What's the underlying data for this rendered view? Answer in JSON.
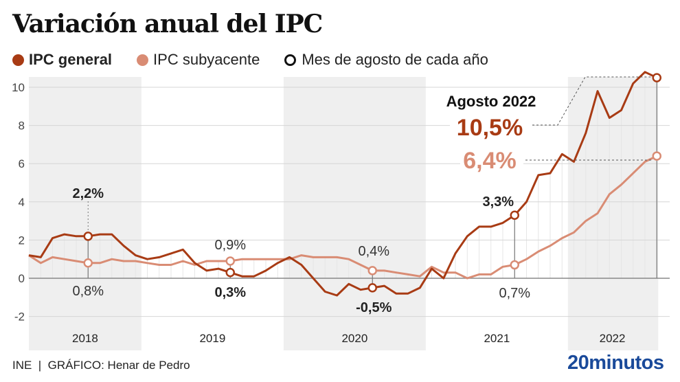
{
  "title": "Variación anual del IPC",
  "legend": [
    {
      "label": "IPC general",
      "color": "#a83b14",
      "marker": "dot",
      "bold": true
    },
    {
      "label": "IPC subyacente",
      "color": "#d98c74",
      "marker": "dot",
      "bold": false
    },
    {
      "label": "Mes de agosto de cada año",
      "color": "#111111",
      "marker": "ring",
      "bold": false
    }
  ],
  "footer": {
    "source": "INE  |  GRÁFICO: Henar de Pedro"
  },
  "logo": "20minutos",
  "colors": {
    "general": "#a83b14",
    "subyacente": "#d98c74",
    "shade": "#efefef",
    "grid": "#d6d6d6",
    "axis": "#777777"
  },
  "chart_data": {
    "type": "line",
    "title": "Variación anual del IPC",
    "xlabel": "",
    "ylabel": "",
    "ylim": [
      -3,
      10.5
    ],
    "yticks": [
      10,
      8,
      6,
      4,
      2,
      0,
      -2
    ],
    "ytick_labels": [
      "10",
      "8",
      "6",
      "4",
      "2",
      "0",
      "-2"
    ],
    "x_start": "2018-03",
    "x_end": "2022-08",
    "years": [
      "2018",
      "2019",
      "2020",
      "2021",
      "2022"
    ],
    "grid": true,
    "legend_position": "top-left",
    "series": [
      {
        "name": "IPC general",
        "values": [
          1.2,
          1.1,
          2.1,
          2.3,
          2.2,
          2.2,
          2.3,
          2.3,
          1.7,
          1.2,
          1.0,
          1.1,
          1.3,
          1.5,
          0.8,
          0.4,
          0.5,
          0.3,
          0.1,
          0.1,
          0.4,
          0.8,
          1.1,
          0.7,
          0.0,
          -0.7,
          -0.9,
          -0.3,
          -0.6,
          -0.5,
          -0.4,
          -0.8,
          -0.8,
          -0.5,
          0.5,
          0.0,
          1.3,
          2.2,
          2.7,
          2.7,
          2.9,
          3.3,
          4.0,
          5.4,
          5.5,
          6.5,
          6.1,
          7.6,
          9.8,
          8.4,
          8.8,
          10.2,
          10.8,
          10.5
        ]
      },
      {
        "name": "IPC subyacente",
        "values": [
          1.2,
          0.8,
          1.1,
          1.0,
          0.9,
          0.8,
          0.8,
          1.0,
          0.9,
          0.9,
          0.8,
          0.7,
          0.7,
          0.9,
          0.7,
          0.9,
          0.9,
          0.9,
          1.0,
          1.0,
          1.0,
          1.0,
          1.0,
          1.2,
          1.1,
          1.1,
          1.1,
          1.0,
          0.7,
          0.4,
          0.4,
          0.3,
          0.2,
          0.1,
          0.6,
          0.3,
          0.3,
          0.0,
          0.2,
          0.2,
          0.6,
          0.7,
          1.0,
          1.4,
          1.7,
          2.1,
          2.4,
          3.0,
          3.4,
          4.4,
          4.9,
          5.5,
          6.1,
          6.4
        ]
      }
    ],
    "august_markers": [
      {
        "year": "2018",
        "general": 2.2,
        "subyacente": 0.8,
        "general_label": "2,2%",
        "subyacente_label": "0,8%"
      },
      {
        "year": "2019",
        "general": 0.3,
        "subyacente": 0.9,
        "general_label": "0,3%",
        "subyacente_label": "0,9%"
      },
      {
        "year": "2020",
        "general": -0.5,
        "subyacente": 0.4,
        "general_label": "-0,5%",
        "subyacente_label": "0,4%"
      },
      {
        "year": "2021",
        "general": 3.3,
        "subyacente": 0.7,
        "general_label": "3,3%",
        "subyacente_label": "0,7%"
      },
      {
        "year": "2022",
        "general": 10.5,
        "subyacente": 6.4,
        "general_label": "10,5%",
        "subyacente_label": "6,4%"
      }
    ],
    "annotation": {
      "heading": "Agosto 2022",
      "general": "10,5%",
      "subyacente": "6,4%"
    }
  }
}
